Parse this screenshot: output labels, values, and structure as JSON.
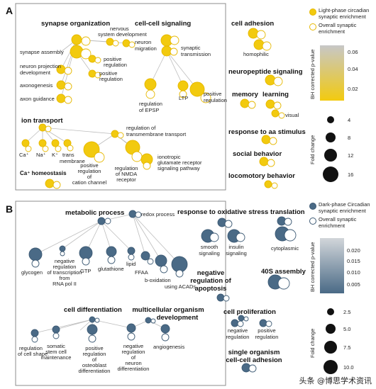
{
  "colors": {
    "yellow": "#f2ca0f",
    "yellow_stroke": "#e6b800",
    "blue": "#4a6a86",
    "blue_stroke": "#3d5a74",
    "edge": "#bdbdbd",
    "frame": "#8c8c8c"
  },
  "panelA": {
    "letter": "A",
    "groups": {
      "synapse_org": "synapse organization",
      "cell_cell": "cell-cell signaling",
      "cell_adhesion": "cell adhesion",
      "neuropeptide": "neuropeptide signaling",
      "memory": "memory",
      "learning": "learning",
      "ion_transport": "ion transport",
      "response_aa": "response to aa stimulus",
      "social": "social behavior",
      "locomotory": "locomotory behavior",
      "ca_homeo": "Ca⁺ homeostasis"
    },
    "nodes": {
      "synapse_assembly": "synapse assembly",
      "neuron_projection": [
        "neuron projection",
        "development"
      ],
      "axonogenesis": "axonogenesis",
      "axon_guidance": "axon guidance",
      "nervous_system": [
        "nervous",
        "system development"
      ],
      "neuron_migration": [
        "neuron",
        "migration"
      ],
      "positive_regulation_1": [
        "positive",
        "regulation"
      ],
      "positive_regulation_2": [
        "positive",
        "regulation"
      ],
      "synaptic_transmission": [
        "synaptic",
        "transmission"
      ],
      "regulation_epsp": [
        "regulation",
        "of EPSP"
      ],
      "ltp": "LTP",
      "positive_regulation_3": [
        "positive",
        "regulation"
      ],
      "homophilic": "homophilic",
      "visual": "visual",
      "reg_transmembrane": [
        "regulation  of",
        "transmembrane transport"
      ],
      "ca": "Ca⁺",
      "na": "Na⁺",
      "k": "K⁺",
      "trans_membrane": [
        "trans",
        "membrane"
      ],
      "pos_reg_cation": [
        "positive",
        "regulation",
        "of",
        "cation channel"
      ],
      "reg_nmda": [
        "regulation",
        "of NMDA",
        "receptor"
      ],
      "ionotropic": [
        "ionotropic",
        "glutamate receptor",
        "signaling pathway"
      ]
    },
    "legend": {
      "item1": [
        "Light-phase circadian",
        "synaptic enrichment"
      ],
      "item2": [
        "Overall synaptic",
        "enrichment"
      ],
      "colorbar_label": "BH corrected p-value",
      "colorbar_ticks": [
        "0.06",
        "0.04",
        "0.02"
      ],
      "size_label": "Fold change",
      "size_ticks": [
        "4",
        "8",
        "12",
        "16"
      ]
    }
  },
  "panelB": {
    "letter": "B",
    "groups": {
      "metabolic": "metabolic process",
      "oxidative": "response to oxidative stress",
      "translation": "translation",
      "neg_apoptosis": [
        "negative",
        "regulation of",
        "apoptosis"
      ],
      "assembly40s": "40S assembly",
      "cell_diff": "cell differentiation",
      "multicell": [
        "multicellular organism",
        "development"
      ],
      "cell_prolif": "cell proliferation",
      "single_org": [
        "single organism",
        "cell-cell adhesion"
      ]
    },
    "nodes": {
      "redox": "redox process",
      "glycogen": "glycogen",
      "neg_reg_transcription": [
        "negative",
        "regulation",
        "of transcription",
        "from",
        "RNA pol II"
      ],
      "gtp": "GTP",
      "glutathione": "glutathione",
      "lipid": "lipid",
      "ffaa": "FFAA",
      "b_oxidation": "b-oxidation",
      "using_acads": "using ACADs",
      "smooth_signaling": [
        "smooth",
        "signaling"
      ],
      "insulin_signaling": [
        "insulin",
        "signaling"
      ],
      "cytoplasmic": "cytoplasmic",
      "reg_cell_shape": [
        "regulation",
        "of cell shape"
      ],
      "somatic_stem": [
        "somatic",
        "stem cell",
        "maintenance"
      ],
      "pos_reg_osteoblast": [
        "positive",
        "regulation",
        "of",
        "osteoblast",
        "differentiation"
      ],
      "neg_reg_neuron": [
        "negative",
        "regulation",
        "of",
        "neuron",
        "differentiation"
      ],
      "angiogenesis": "angiogenesis",
      "negative_regulation": [
        "negative",
        "regulation"
      ],
      "positive_regulation": [
        "positive",
        "regulation"
      ]
    },
    "legend": {
      "item1": [
        "Dark-phase Circadian",
        "synaptic enrichment"
      ],
      "item2": [
        "Overall synaptic",
        "enrichment"
      ],
      "colorbar_label": "BH corrected p-value",
      "colorbar_ticks": [
        "0.020",
        "0.015",
        "0.010",
        "0.005"
      ],
      "size_label": "Fold change",
      "size_ticks": [
        "2.5",
        "5.0",
        "7.5",
        "10.0"
      ]
    }
  },
  "watermark": "头条 @博思学术资讯"
}
